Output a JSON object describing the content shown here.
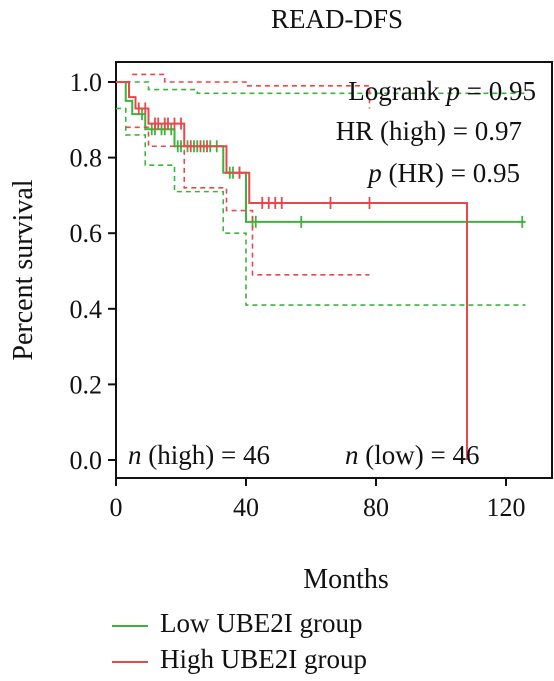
{
  "chart_data": {
    "type": "line",
    "title": "READ-DFS",
    "xlabel": "Months",
    "ylabel": "Percent survival",
    "xlim": [
      0,
      130
    ],
    "ylim": [
      0,
      1.05
    ],
    "xticks": [
      0,
      40,
      80,
      120
    ],
    "yticks": [
      0.0,
      0.2,
      0.4,
      0.6,
      0.8,
      1.0
    ],
    "xtick_labels": [
      "0",
      "40",
      "80",
      "120"
    ],
    "ytick_labels": [
      "0.0",
      "0.2",
      "0.4",
      "0.6",
      "0.8",
      "1.0"
    ],
    "series": [
      {
        "name": "Low UBE2I group",
        "color": "#3cb43c",
        "style": "survival-step",
        "x": [
          0,
          3,
          5,
          9,
          18,
          33,
          40,
          126
        ],
        "y": [
          1.0,
          0.95,
          0.915,
          0.875,
          0.83,
          0.76,
          0.63,
          0.63
        ],
        "censor_x": [
          8,
          11,
          12,
          14,
          15,
          17,
          19,
          20,
          22,
          24,
          25,
          27,
          29,
          31,
          35,
          36,
          38,
          42,
          43,
          57,
          125
        ],
        "ci_upper": {
          "x": [
            3,
            10,
            25,
            40,
            126
          ],
          "y": [
            1.0,
            0.98,
            0.97,
            0.97,
            0.98
          ]
        },
        "ci_lower": {
          "x": [
            0,
            3,
            9,
            18,
            33,
            40,
            126
          ],
          "y": [
            0.93,
            0.86,
            0.78,
            0.71,
            0.6,
            0.41,
            0.41
          ]
        }
      },
      {
        "name": "High UBE2I group",
        "color": "#e8474c",
        "style": "survival-step",
        "x": [
          0,
          4,
          6,
          10,
          21,
          34,
          41,
          108,
          108
        ],
        "y": [
          1.0,
          0.96,
          0.93,
          0.89,
          0.83,
          0.76,
          0.68,
          0.68,
          0.0
        ],
        "censor_x": [
          7,
          9,
          12,
          13,
          15,
          16,
          18,
          20,
          23,
          26,
          28,
          38,
          45,
          47,
          49,
          51,
          66,
          78
        ],
        "ci_upper": {
          "x": [
            5,
            15,
            40,
            78
          ],
          "y": [
            1.02,
            1.0,
            0.99,
            0.93
          ]
        },
        "ci_lower": {
          "x": [
            3,
            10,
            21,
            34,
            42,
            78
          ],
          "y": [
            0.88,
            0.83,
            0.72,
            0.66,
            0.49,
            0.49
          ]
        }
      }
    ],
    "annotations": {
      "logrank_prefix": "Logrank ",
      "logrank_p_sym": "p",
      "logrank_value": " = 0.95",
      "hr_text": "HR (high) = 0.97",
      "phr_sym": "p",
      "phr_value": " (HR) = 0.95",
      "n_high_sym": "n",
      "n_high_value": " (high) = 46",
      "n_low_sym": "n",
      "n_low_value": " (low) = 46"
    },
    "legend": [
      {
        "label": "Low UBE2I group",
        "color": "#3cb43c"
      },
      {
        "label": "High UBE2I group",
        "color": "#e8474c"
      }
    ],
    "grid": false
  }
}
